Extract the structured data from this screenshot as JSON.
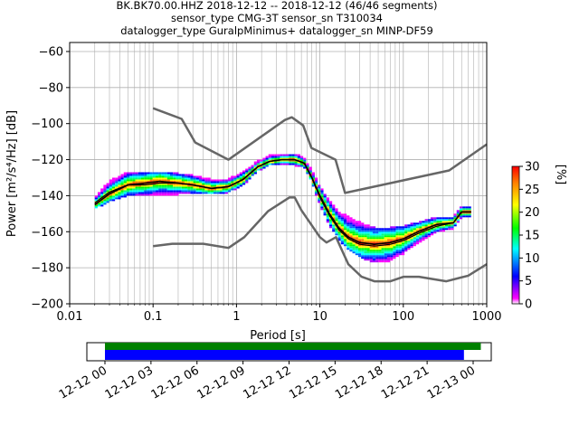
{
  "title_lines": [
    "BK.BK70.00.HHZ   2018-12-12 -- 2018-12-12  (46/46 segments)",
    "sensor_type CMG-3T sensor_sn T310034",
    "datalogger_type GuralpMinimus+ datalogger_sn MINP-DF59"
  ],
  "chart_data": [
    {
      "type": "heatmap",
      "xlabel": "Period [s]",
      "ylabel": "Power [m²/s⁴/Hz] [dB]",
      "xscale": "log",
      "xlim": [
        0.01,
        1000
      ],
      "ylim": [
        -200,
        -55
      ],
      "x_ticks": [
        0.01,
        0.1,
        1,
        10,
        100,
        1000
      ],
      "x_tick_labels": [
        "0.01",
        "0.1",
        "1",
        "10",
        "100",
        "1000"
      ],
      "y_ticks": [
        -200,
        -180,
        -160,
        -140,
        -120,
        -100,
        -80,
        -60
      ],
      "y_tick_labels": [
        "−200",
        "−180",
        "−160",
        "−140",
        "−120",
        "−100",
        "−80",
        "−60"
      ],
      "grid": true,
      "colorbar": {
        "label": "[%]",
        "range": [
          0,
          30
        ],
        "ticks": [
          0,
          5,
          10,
          15,
          20,
          25,
          30
        ],
        "colormap": "pqlx"
      },
      "new_high_noise_model": {
        "period": [
          0.1,
          0.22,
          0.32,
          0.8,
          3.8,
          4.6,
          6.3,
          7.9,
          15.4,
          20,
          354.8,
          1000
        ],
        "power": [
          -91.5,
          -97.4,
          -110.5,
          -120,
          -98,
          -96.5,
          -101,
          -113.5,
          -120,
          -138.5,
          -126,
          -111.5
        ]
      },
      "new_low_noise_model": {
        "period": [
          0.1,
          0.17,
          0.4,
          0.8,
          1.24,
          2.4,
          4.3,
          5,
          6,
          10,
          12,
          15.6,
          21.9,
          31.6,
          45,
          70,
          101,
          154,
          328,
          600,
          1000
        ],
        "power": [
          -168,
          -166.7,
          -166.7,
          -169,
          -163,
          -148.5,
          -141,
          -141,
          -148,
          -163,
          -166,
          -163,
          -178,
          -185,
          -187.5,
          -187.5,
          -185,
          -185,
          -187.5,
          -184.4,
          -178
        ]
      },
      "mode_curve": {
        "period": [
          0.02,
          0.03,
          0.05,
          0.08,
          0.12,
          0.2,
          0.3,
          0.5,
          0.8,
          1.2,
          1.8,
          2.5,
          3.5,
          5,
          6.5,
          8,
          10,
          13,
          17,
          22,
          30,
          45,
          70,
          100,
          150,
          250,
          400,
          500,
          650
        ],
        "power": [
          -145,
          -139,
          -134,
          -133,
          -132,
          -133,
          -134,
          -136,
          -135,
          -131,
          -124,
          -121,
          -120,
          -120,
          -122,
          -130,
          -140,
          -150,
          -158,
          -163,
          -166,
          -167,
          -166,
          -164,
          -160,
          -156,
          -155,
          -149,
          -149
        ]
      },
      "mean_curve": {
        "period": [
          0.02,
          0.03,
          0.05,
          0.08,
          0.12,
          0.2,
          0.3,
          0.5,
          0.8,
          1.2,
          1.8,
          2.5,
          3.5,
          5,
          6.5,
          8,
          10,
          13,
          17,
          22,
          30,
          45,
          70,
          100,
          150,
          250,
          400,
          500,
          650
        ],
        "power": [
          -144,
          -138,
          -134,
          -134,
          -133,
          -133,
          -134,
          -136,
          -135,
          -131,
          -124,
          -121,
          -120,
          -120,
          -122,
          -130,
          -141,
          -151,
          -159,
          -164,
          -167,
          -168,
          -167,
          -165,
          -161,
          -157,
          -155,
          -149,
          -149
        ]
      },
      "psd_distribution": {
        "period": [
          0.02,
          0.03,
          0.05,
          0.08,
          0.12,
          0.2,
          0.3,
          0.5,
          0.8,
          1.2,
          1.8,
          2.5,
          3.5,
          5,
          6.5,
          8,
          10,
          13,
          17,
          22,
          30,
          45,
          70,
          100,
          150,
          250,
          400,
          500,
          650
        ],
        "power_min": [
          -147,
          -143,
          -140,
          -140,
          -140,
          -139,
          -139,
          -139,
          -138,
          -134,
          -126,
          -123,
          -122,
          -123,
          -124,
          -132,
          -145,
          -156,
          -164,
          -170,
          -174,
          -177,
          -176,
          -172,
          -166,
          -160,
          -158,
          -152,
          -152
        ],
        "power_max": [
          -141,
          -132,
          -127,
          -127,
          -127,
          -128,
          -129,
          -131,
          -131,
          -127,
          -121,
          -118,
          -117,
          -117,
          -119,
          -126,
          -135,
          -143,
          -149,
          -152,
          -155,
          -158,
          -158,
          -157,
          -155,
          -152,
          -152,
          -146,
          -146
        ]
      }
    },
    {
      "type": "bar",
      "xlim": [
        "12-12 00",
        "12-13 00"
      ],
      "x_tick_labels": [
        "12-12 00",
        "12-12 03",
        "12-12 06",
        "12-12 09",
        "12-12 12",
        "12-12 15",
        "12-12 18",
        "12-12 21",
        "12-13 00"
      ],
      "x_ticks_hours": [
        0,
        3,
        6,
        9,
        12,
        15,
        18,
        21,
        24
      ],
      "series": [
        {
          "color": "#008000",
          "start_hour": 0,
          "end_hour": 24.5
        },
        {
          "color": "#0000ff",
          "start_hour": 0,
          "end_hour": 23.4
        }
      ]
    }
  ]
}
